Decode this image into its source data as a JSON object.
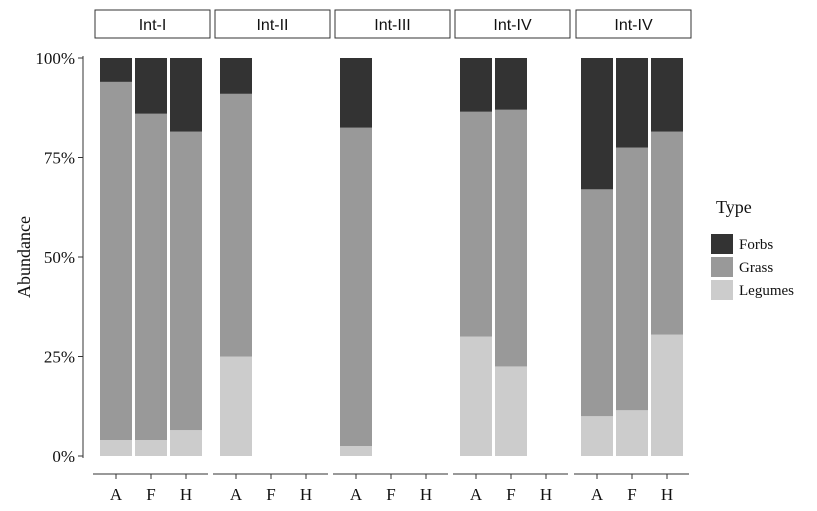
{
  "chart_data": {
    "type": "bar",
    "stacked": true,
    "ylabel": "Abundance",
    "xlabel": "",
    "ylim": [
      0,
      1
    ],
    "y_ticks": [
      "0%",
      "25%",
      "50%",
      "75%",
      "100%"
    ],
    "y_tick_values": [
      0,
      0.25,
      0.5,
      0.75,
      1.0
    ],
    "categories": [
      "A",
      "F",
      "H"
    ],
    "legend": {
      "title": "Type",
      "position": "right",
      "entries": [
        {
          "name": "Forbs",
          "color": "#333333"
        },
        {
          "name": "Grass",
          "color": "#999999"
        },
        {
          "name": "Legumes",
          "color": "#cccccc"
        }
      ]
    },
    "panels": [
      {
        "label": "Int-I",
        "bars": [
          {
            "category": "A",
            "Legumes": 0.04,
            "Grass": 0.9,
            "Forbs": 0.06
          },
          {
            "category": "F",
            "Legumes": 0.04,
            "Grass": 0.82,
            "Forbs": 0.14
          },
          {
            "category": "H",
            "Legumes": 0.065,
            "Grass": 0.75,
            "Forbs": 0.185
          }
        ]
      },
      {
        "label": "Int-II",
        "bars": [
          {
            "category": "A",
            "Legumes": 0.25,
            "Grass": 0.66,
            "Forbs": 0.09
          },
          {
            "category": "F",
            "Legumes": 0,
            "Grass": 0,
            "Forbs": 0
          },
          {
            "category": "H",
            "Legumes": 0,
            "Grass": 0,
            "Forbs": 0
          }
        ]
      },
      {
        "label": "Int-III",
        "bars": [
          {
            "category": "A",
            "Legumes": 0.025,
            "Grass": 0.8,
            "Forbs": 0.175
          },
          {
            "category": "F",
            "Legumes": 0,
            "Grass": 0,
            "Forbs": 0
          },
          {
            "category": "H",
            "Legumes": 0,
            "Grass": 0,
            "Forbs": 0
          }
        ]
      },
      {
        "label": "Int-IV",
        "bars": [
          {
            "category": "A",
            "Legumes": 0.3,
            "Grass": 0.565,
            "Forbs": 0.135
          },
          {
            "category": "F",
            "Legumes": 0.225,
            "Grass": 0.645,
            "Forbs": 0.13
          },
          {
            "category": "H",
            "Legumes": 0,
            "Grass": 0,
            "Forbs": 0
          }
        ]
      },
      {
        "label": "Int-IV",
        "bars": [
          {
            "category": "A",
            "Legumes": 0.1,
            "Grass": 0.57,
            "Forbs": 0.33
          },
          {
            "category": "F",
            "Legumes": 0.115,
            "Grass": 0.66,
            "Forbs": 0.225
          },
          {
            "category": "H",
            "Legumes": 0.305,
            "Grass": 0.51,
            "Forbs": 0.185
          }
        ]
      }
    ]
  }
}
